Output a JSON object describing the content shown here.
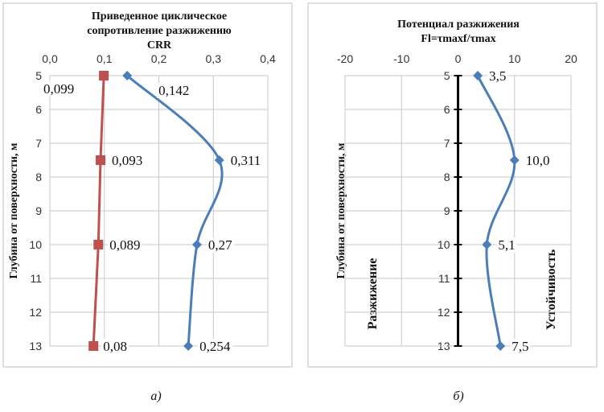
{
  "chart_data": [
    {
      "type": "line",
      "title_lines": [
        "Приведенное циклическое",
        "сопротивление разжижению",
        "CRR"
      ],
      "ylabel": "Глубина от поверхности, м",
      "xlim": [
        0,
        0.4
      ],
      "x_ticks": [
        "0,0",
        "0,1",
        "0,2",
        "0,3",
        "0,4"
      ],
      "ylim": [
        5,
        13
      ],
      "y_ticks": [
        "5",
        "6",
        "7",
        "8",
        "9",
        "10",
        "11",
        "12",
        "13"
      ],
      "y_inverted": true,
      "x_axis_position": "top",
      "grid": true,
      "series": [
        {
          "color": "#c0504d",
          "marker": "square",
          "points": [
            {
              "x": 0.099,
              "y": 5,
              "label": "0,099"
            },
            {
              "x": 0.093,
              "y": 7.5,
              "label": "0,093"
            },
            {
              "x": 0.089,
              "y": 10,
              "label": "0,089"
            },
            {
              "x": 0.08,
              "y": 13,
              "label": "0,08"
            }
          ]
        },
        {
          "color": "#4a7ebb",
          "marker": "diamond",
          "smooth": true,
          "points": [
            {
              "x": 0.142,
              "y": 5,
              "label": "0,142"
            },
            {
              "x": 0.311,
              "y": 7.5,
              "label": "0,311"
            },
            {
              "x": 0.27,
              "y": 10,
              "label": "0,27"
            },
            {
              "x": 0.254,
              "y": 13,
              "label": "0,254"
            }
          ]
        }
      ],
      "caption": "а)"
    },
    {
      "type": "line",
      "title_lines": [
        "Потенциал разжижения",
        "Fl=τmaxf/τmax"
      ],
      "ylabel": "Глубина от поверхности, м",
      "xlim": [
        -20,
        20
      ],
      "x_ticks": [
        "-20",
        "-10",
        "0",
        "10",
        "20"
      ],
      "ylim": [
        5,
        13
      ],
      "y_ticks": [
        "5",
        "6",
        "7",
        "8",
        "9",
        "10",
        "11",
        "12",
        "13"
      ],
      "y_inverted": true,
      "x_axis_position": "top",
      "grid": true,
      "zone_left": "Разжижение",
      "zone_right": "Устойчивость",
      "series": [
        {
          "color": "#4a7ebb",
          "marker": "diamond",
          "smooth": true,
          "points": [
            {
              "x": 3.5,
              "y": 5,
              "label": "3,5"
            },
            {
              "x": 10.0,
              "y": 7.5,
              "label": "10,0"
            },
            {
              "x": 5.1,
              "y": 10,
              "label": "5,1"
            },
            {
              "x": 7.5,
              "y": 13,
              "label": "7,5"
            }
          ]
        }
      ],
      "caption": "б)"
    }
  ]
}
